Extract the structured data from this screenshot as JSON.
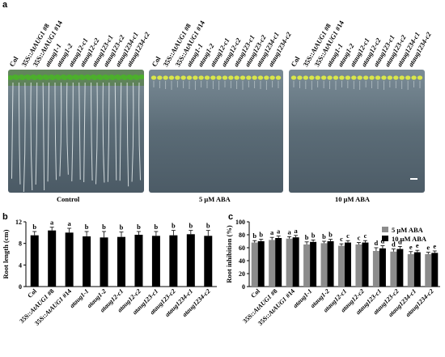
{
  "panels": {
    "a": "a",
    "b": "b",
    "c": "c"
  },
  "genotypes": [
    "Col",
    "35S::AtAUG1 #8",
    "35S::AtAUG1 #14",
    "ataug1-1",
    "ataug1-2",
    "ataug12-c1",
    "ataug12-c2",
    "ataug123-c1",
    "ataug123-c2",
    "ataug1234-c1",
    "ataug1234-c2"
  ],
  "conditions": [
    "Control",
    "5 μM ABA",
    "10 μM ABA"
  ],
  "colors": {
    "control_leaf": "#4caf2c",
    "aba_leaf": "#d9e64a",
    "bar_black": "#000000",
    "bar_gray": "#8c8c8c"
  },
  "chart_data": [
    {
      "type": "bar",
      "panel": "b",
      "categories": [
        "Col",
        "35S::AtAUG1 #8",
        "35S::AtAUG1 #14",
        "ataug1-1",
        "ataug1-2",
        "ataug12-c1",
        "ataug12-c2",
        "ataug123-c1",
        "ataug123-c2",
        "ataug1234-c1",
        "ataug1234-c2"
      ],
      "values": [
        9.5,
        10.4,
        10.0,
        9.3,
        9.1,
        9.2,
        9.6,
        9.4,
        9.5,
        9.7,
        9.4
      ],
      "errors": [
        0.7,
        0.6,
        0.8,
        0.9,
        1.1,
        0.9,
        0.6,
        0.8,
        0.9,
        0.7,
        1.0
      ],
      "letters": [
        "b",
        "a",
        "a",
        "b",
        "b",
        "b",
        "b",
        "b",
        "b",
        "b",
        "b"
      ],
      "ylabel": "Root length (cm)",
      "ylim": [
        0,
        12
      ],
      "yticks": [
        0,
        4,
        8,
        12
      ]
    },
    {
      "type": "bar",
      "panel": "c",
      "categories": [
        "Col",
        "35S::AtAUG1 #8",
        "35S::AtAUG1 #14",
        "ataug1-1",
        "ataug1-2",
        "ataug12-c1",
        "ataug12-c2",
        "ataug123-c1",
        "ataug123-c2",
        "ataug1234-c1",
        "ataug1234-c2"
      ],
      "series": [
        {
          "name": "5 μM ABA",
          "values": [
            68,
            72,
            74,
            65,
            67,
            63,
            65,
            55,
            54,
            50,
            50
          ],
          "errors": [
            3,
            4,
            3,
            4,
            3,
            3,
            3,
            5,
            4,
            4,
            3
          ],
          "letters": [
            "b",
            "a",
            "a",
            "b",
            "b",
            "c",
            "c",
            "d",
            "d",
            "e",
            "e"
          ]
        },
        {
          "name": "10 μM ABA",
          "values": [
            70,
            75,
            76,
            69,
            70,
            68,
            68,
            59,
            58,
            53,
            52
          ],
          "errors": [
            3,
            3,
            3,
            3,
            3,
            3,
            3,
            4,
            4,
            3,
            3
          ],
          "letters": [
            "b",
            "a",
            "a",
            "b",
            "b",
            "c",
            "c",
            "d",
            "d",
            "e",
            "e"
          ]
        }
      ],
      "ylabel": "Root inhibition (%)",
      "ylim": [
        0,
        100
      ],
      "yticks": [
        0,
        20,
        40,
        60,
        80,
        100
      ],
      "legend": "top-right"
    }
  ]
}
